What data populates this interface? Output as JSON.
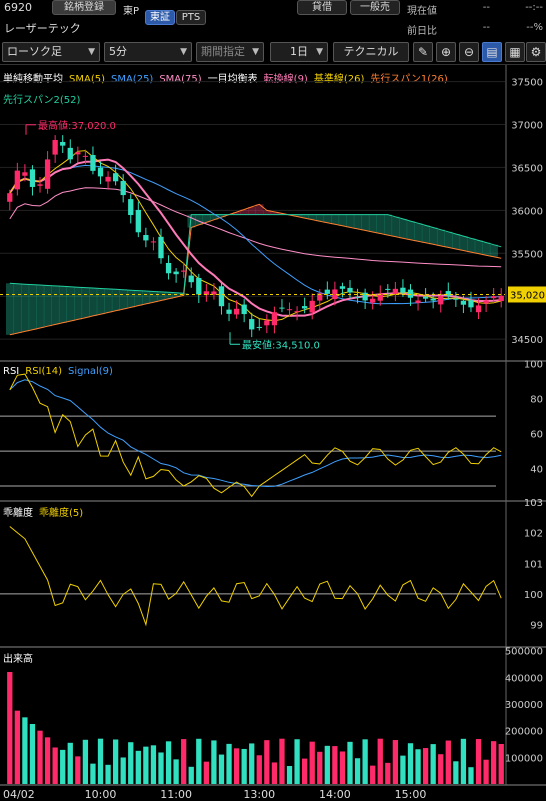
{
  "header": {
    "code": "6920",
    "name": "レーザーテック",
    "register_button": "銘柄登録",
    "market": "東P",
    "exchange_tabs": [
      "東証",
      "PTS"
    ],
    "lend_button": "貸借",
    "sell_type_button": "一般売",
    "current_price_label": "現在値",
    "current_price_value": "--",
    "current_price_unit": "--:--",
    "change_label": "前日比",
    "change_value": "--",
    "change_pct": "--%"
  },
  "toolbar": {
    "chart_type": "ローソク足",
    "interval": "5分",
    "period_placeholder": "期間指定",
    "range": "1日",
    "technical_button": "テクニカル",
    "icons": [
      "pen-icon",
      "zoom-in-icon",
      "zoom-out-icon",
      "grid-icon",
      "chart-icon",
      "save-icon",
      "settings-icon"
    ]
  },
  "chart_data": [
    {
      "type": "candlestick",
      "legend_row1": [
        {
          "text": "単純移動平均",
          "color": "#ffffff"
        },
        {
          "text": "SMA(5)",
          "color": "#f0d000"
        },
        {
          "text": "SMA(25)",
          "color": "#3fa0ff"
        },
        {
          "text": "SMA(75)",
          "color": "#ff8fc8"
        },
        {
          "text": "一目均衡表",
          "color": "#ffffff"
        },
        {
          "text": "転換線(9)",
          "color": "#ff7ab8"
        },
        {
          "text": "基準線(26)",
          "color": "#f0d000"
        },
        {
          "text": "先行スパン1(26)",
          "color": "#ff7f30"
        }
      ],
      "legend_row2": [
        {
          "text": "先行スパン2(52)",
          "color": "#20d0a0"
        }
      ],
      "y_ticks": [
        34500,
        35000,
        35500,
        36000,
        36500,
        37000,
        37500
      ],
      "ylim": [
        34350,
        37600
      ],
      "current_price_label": "35,020",
      "current_price": 35020,
      "high_label": "最高値:37,020.0",
      "high": 37020,
      "low_label": "最安値:34,510.0",
      "low": 34510,
      "n_bars": 66,
      "x_labels": [
        "04/02",
        "10:00",
        "11:00",
        "13:00",
        "14:00",
        "15:00"
      ]
    },
    {
      "type": "line",
      "legend": [
        {
          "text": "RSI",
          "color": "#ffffff"
        },
        {
          "text": "RSI(14)",
          "color": "#f0d000"
        },
        {
          "text": "Signal(9)",
          "color": "#3fa0ff"
        }
      ],
      "y_ticks": [
        40,
        60,
        80,
        100
      ],
      "ylim": [
        22,
        101
      ],
      "hlines": [
        30,
        50,
        70
      ]
    },
    {
      "type": "line",
      "legend": [
        {
          "text": "乖離度",
          "color": "#ffffff"
        },
        {
          "text": "乖離度(5)",
          "color": "#f0d000"
        }
      ],
      "y_ticks": [
        99,
        100,
        101,
        102,
        103
      ],
      "ylim": [
        98.3,
        103
      ],
      "hlines": [
        100
      ]
    },
    {
      "type": "bar",
      "legend": [
        {
          "text": "出来高",
          "color": "#ffffff"
        }
      ],
      "y_ticks": [
        100000,
        200000,
        300000,
        400000,
        500000
      ],
      "ylim": [
        0,
        510000
      ]
    }
  ]
}
